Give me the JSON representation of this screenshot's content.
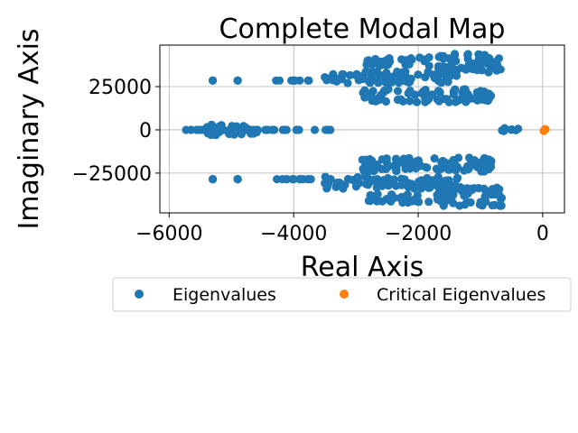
{
  "chart_data": {
    "type": "scatter",
    "title": "Complete Modal Map",
    "xlabel": "Real Axis",
    "ylabel": "Imaginary Axis",
    "xlim": [
      -6150,
      350
    ],
    "ylim": [
      -48000,
      49000
    ],
    "xticks": [
      -6000,
      -4000,
      -2000,
      0
    ],
    "xtick_labels": [
      "−6000",
      "−4000",
      "−2000",
      "0"
    ],
    "yticks": [
      -25000,
      0,
      25000
    ],
    "ytick_labels": [
      "−25000",
      "0",
      "25000"
    ],
    "grid": true,
    "legend": {
      "placement": "below-center",
      "columns": 2
    },
    "series": [
      {
        "name": "Eigenvalues",
        "color": "#1f77b4",
        "clusters": [
          {
            "x": [
              -5850,
              -3300
            ],
            "y": [
              0,
              0
            ]
          },
          {
            "x": [
              -5400,
              -4500
            ],
            "y": [
              -3000,
              3000
            ]
          },
          {
            "x": [
              -5300,
              -5300
            ],
            "y": [
              28500,
              28500
            ]
          },
          {
            "x": [
              -4900,
              -4900
            ],
            "y": [
              28500,
              28500
            ]
          },
          {
            "x": [
              -4300,
              -3700
            ],
            "y": [
              28500,
              28500
            ]
          },
          {
            "x": [
              -5300,
              -5300
            ],
            "y": [
              -28500,
              -28500
            ]
          },
          {
            "x": [
              -4900,
              -4900
            ],
            "y": [
              -28500,
              -28500
            ]
          },
          {
            "x": [
              -4300,
              -3700
            ],
            "y": [
              -28500,
              -28500
            ]
          },
          {
            "x": [
              -3500,
              -1300
            ],
            "y": [
              27000,
              34000
            ]
          },
          {
            "x": [
              -3500,
              -1300
            ],
            "y": [
              -34000,
              -27000
            ]
          },
          {
            "x": [
              -2900,
              -1800
            ],
            "y": [
              37000,
              42000
            ]
          },
          {
            "x": [
              -2900,
              -1800
            ],
            "y": [
              -42000,
              -37000
            ]
          },
          {
            "x": [
              -1700,
              -650
            ],
            "y": [
              33000,
              44000
            ]
          },
          {
            "x": [
              -1700,
              -650
            ],
            "y": [
              -44000,
              -33000
            ]
          },
          {
            "x": [
              -2900,
              -800
            ],
            "y": [
              16000,
              24000
            ]
          },
          {
            "x": [
              -2900,
              -800
            ],
            "y": [
              -24000,
              -16000
            ]
          },
          {
            "x": [
              -700,
              -150
            ],
            "y": [
              -1000,
              1000
            ]
          }
        ]
      },
      {
        "name": "Critical Eigenvalues",
        "color": "#ff7f0e",
        "clusters": [
          {
            "x": [
              -100,
              50
            ],
            "y": [
              -1000,
              1000
            ]
          }
        ]
      }
    ]
  }
}
